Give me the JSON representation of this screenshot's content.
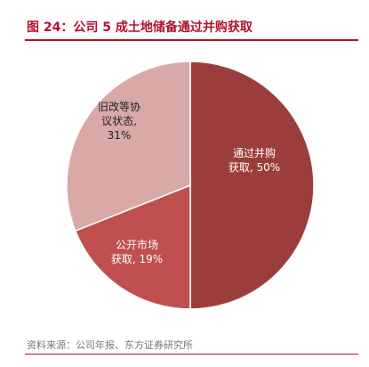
{
  "title": "图 24：公司 5 成土地储备通过并购获取",
  "source": "资料来源：公司年报、东方证券研究所",
  "colors": {
    "title": "#b0122f",
    "rule": "#b0122f"
  },
  "chart_data": {
    "type": "pie",
    "title": "图 24：公司 5 成土地储备通过并购获取",
    "slices": [
      {
        "name": "通过并购获取",
        "value": 50,
        "label_lines": [
          "通过并购",
          "获取, 50%"
        ],
        "color": "#9b3e3b",
        "label_color": "#ffffff"
      },
      {
        "name": "公开市场获取",
        "value": 19,
        "label_lines": [
          "公开市场",
          "获取, 19%"
        ],
        "color": "#c0504f",
        "label_color": "#ffffff"
      },
      {
        "name": "旧改等协议状态",
        "value": 31,
        "label_lines": [
          "旧改等协",
          "议状态,",
          "31%"
        ],
        "color": "#d9a9a8",
        "label_color": "#222222"
      }
    ],
    "start_angle_deg": 0,
    "direction": "clockwise",
    "legend": "none"
  }
}
